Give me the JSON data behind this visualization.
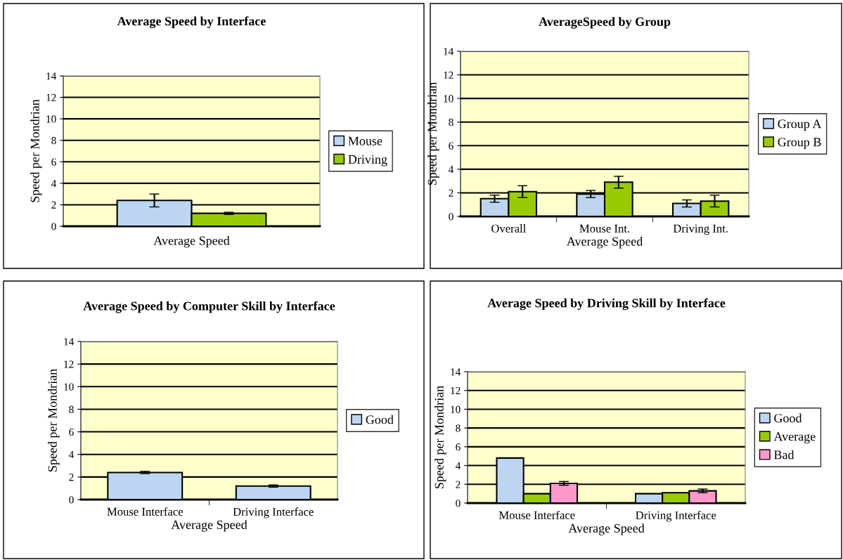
{
  "chart_data": [
    {
      "type": "bar",
      "title": "Average Speed by Interface",
      "xlabel": "Average Speed",
      "ylabel": "Speed per Mondrian",
      "categories": [
        null
      ],
      "ylim": [
        0,
        14
      ],
      "yticks": [
        0,
        2,
        4,
        6,
        8,
        10,
        12,
        14
      ],
      "grid": "y",
      "legend": "right",
      "series": [
        {
          "name": "Mouse",
          "color": "#bcd6f2",
          "values": [
            2.4
          ],
          "errors": [
            0.6
          ]
        },
        {
          "name": "Driving",
          "color": "#99cc00",
          "values": [
            1.2
          ],
          "errors": [
            0.1
          ]
        }
      ]
    },
    {
      "type": "bar",
      "title": "AverageSpeed by Group",
      "xlabel": "Average Speed",
      "ylabel": "Speed per Mondrian",
      "categories": [
        "Overall",
        "Mouse Int.",
        "Driving Int."
      ],
      "ylim": [
        0,
        14
      ],
      "yticks": [
        0,
        2,
        4,
        6,
        8,
        10,
        12,
        14
      ],
      "grid": "y",
      "legend": "right",
      "series": [
        {
          "name": "Group A",
          "color": "#bcd6f2",
          "values": [
            1.5,
            1.9,
            1.1
          ],
          "errors": [
            0.3,
            0.3,
            0.3
          ]
        },
        {
          "name": "Group B",
          "color": "#99cc00",
          "values": [
            2.1,
            2.9,
            1.3
          ],
          "errors": [
            0.5,
            0.5,
            0.5
          ]
        }
      ]
    },
    {
      "type": "bar",
      "title": "Average Speed by Computer Skill by Interface",
      "xlabel": "Average Speed",
      "ylabel": "Speed per Mondrian",
      "categories": [
        "Mouse Interface",
        "Driving Interface"
      ],
      "ylim": [
        0,
        14
      ],
      "yticks": [
        0,
        2,
        4,
        6,
        8,
        10,
        12,
        14
      ],
      "grid": "y",
      "legend": "right",
      "series": [
        {
          "name": "Good",
          "color": "#bcd6f2",
          "values": [
            2.4,
            1.2
          ],
          "errors": [
            0.1,
            0.1
          ]
        }
      ]
    },
    {
      "type": "bar",
      "title": "Average Speed by Driving Skill by Interface",
      "xlabel": "Average Speed",
      "ylabel": "Speed per Mondrian",
      "categories": [
        "Mouse Interface",
        "Driving Interface"
      ],
      "ylim": [
        0,
        14
      ],
      "yticks": [
        0,
        2,
        4,
        6,
        8,
        10,
        12,
        14
      ],
      "grid": "y",
      "legend": "right",
      "series": [
        {
          "name": "Good",
          "color": "#bcd6f2",
          "values": [
            4.8,
            1.0
          ]
        },
        {
          "name": "Average",
          "color": "#99cc00",
          "values": [
            1.0,
            1.1
          ]
        },
        {
          "name": "Bad",
          "color": "#ff99cc",
          "values": [
            2.1,
            1.3
          ],
          "errors": [
            0.2,
            0.2
          ]
        }
      ]
    }
  ]
}
